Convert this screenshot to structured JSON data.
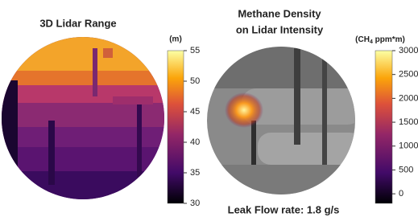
{
  "panels": [
    {
      "title": [
        "3D Lidar Range"
      ],
      "colorbar": {
        "unit": [
          "(m)"
        ],
        "lim": [
          30,
          55
        ],
        "ticks": [
          30,
          35,
          40,
          45,
          50,
          55
        ]
      }
    },
    {
      "title": [
        "Methane Density",
        "on Lidar Intensity"
      ],
      "colorbar": {
        "unit": [
          "(CH",
          "4",
          " ppm*m)"
        ],
        "lim": [
          -200,
          3000
        ],
        "ticks": [
          0,
          500,
          1000,
          1500,
          2000,
          2500,
          3000
        ]
      }
    }
  ],
  "caption": "Leak Flow rate: 1.8 g/s"
}
